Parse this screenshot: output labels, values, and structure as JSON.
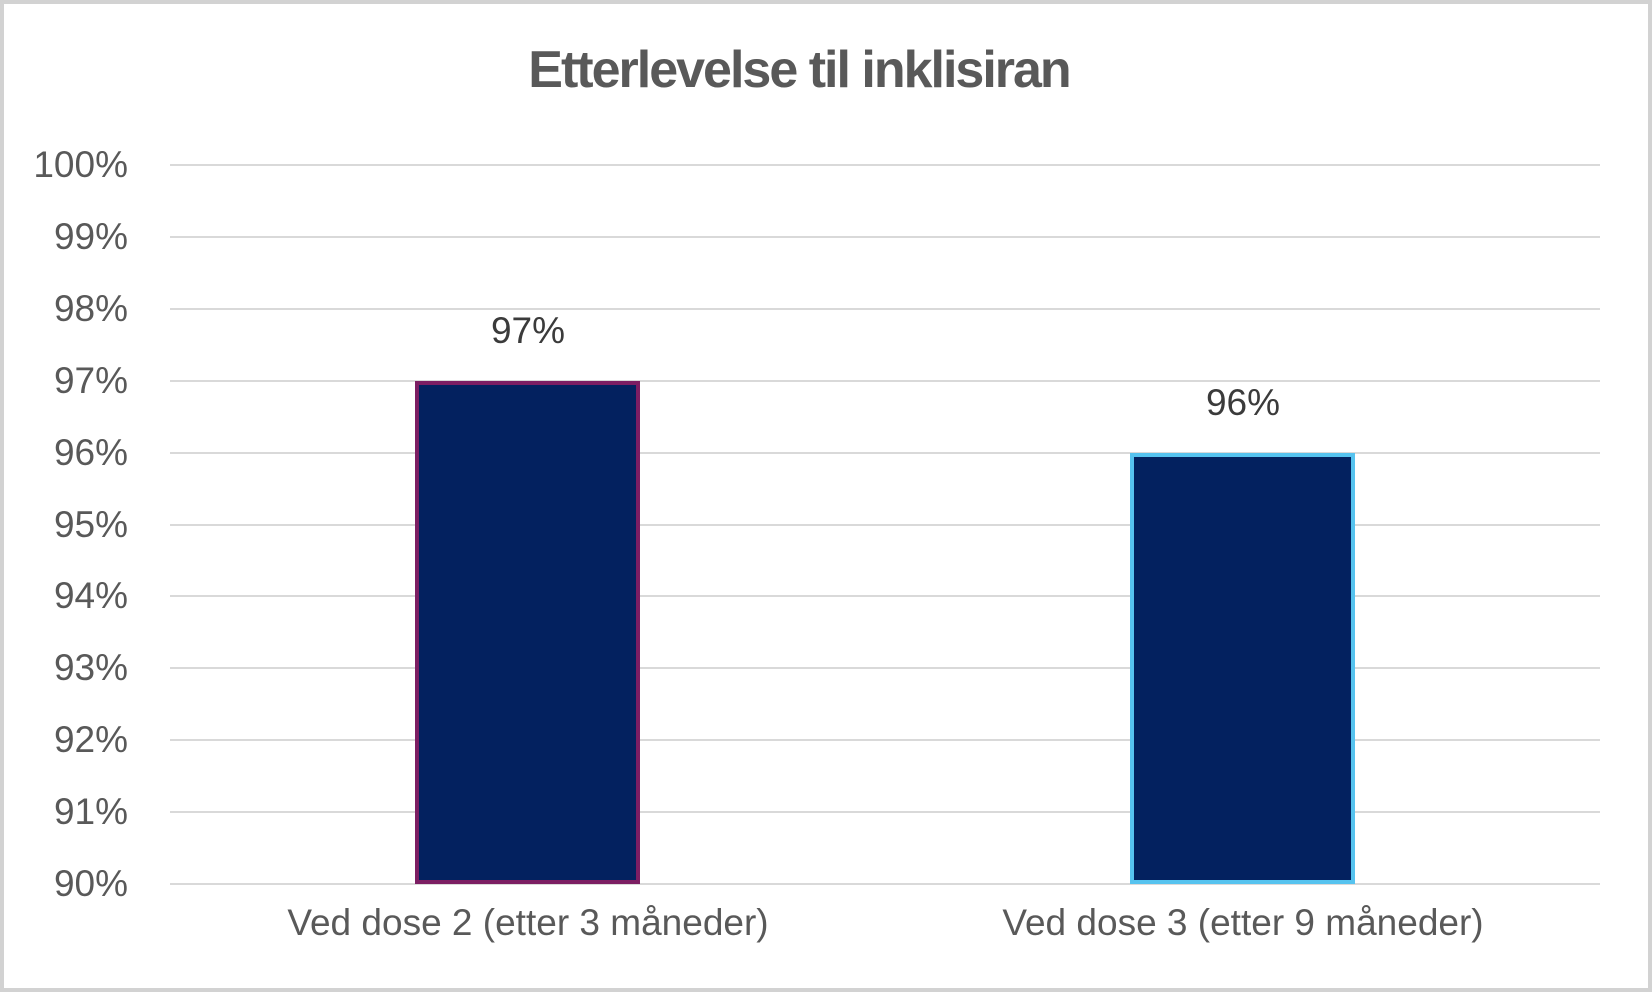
{
  "chart_data": {
    "type": "bar",
    "title": "Etterlevelse til inklisiran",
    "categories": [
      "Ved dose 2 (etter 3 måneder)",
      "Ved dose 3 (etter 9 måneder)"
    ],
    "values": [
      97,
      96
    ],
    "data_labels": [
      "97%",
      "96%"
    ],
    "ylabel": "",
    "xlabel": "",
    "ylim": [
      90,
      100
    ],
    "ytick_step": 1,
    "yticks": [
      "100%",
      "99%",
      "98%",
      "97%",
      "96%",
      "95%",
      "94%",
      "93%",
      "92%",
      "91%",
      "90%"
    ],
    "grid": true,
    "legend": "none",
    "colors": {
      "bar_fill": "#03215f",
      "bar_borders": [
        "#7c1e63",
        "#56c3ef"
      ],
      "gridline": "#d9d9d9",
      "axis_text": "#595959",
      "data_label_text": "#3b3b3b",
      "title_text": "#595959",
      "frame_border": "#d2d2d2",
      "background": "#ffffff"
    }
  }
}
